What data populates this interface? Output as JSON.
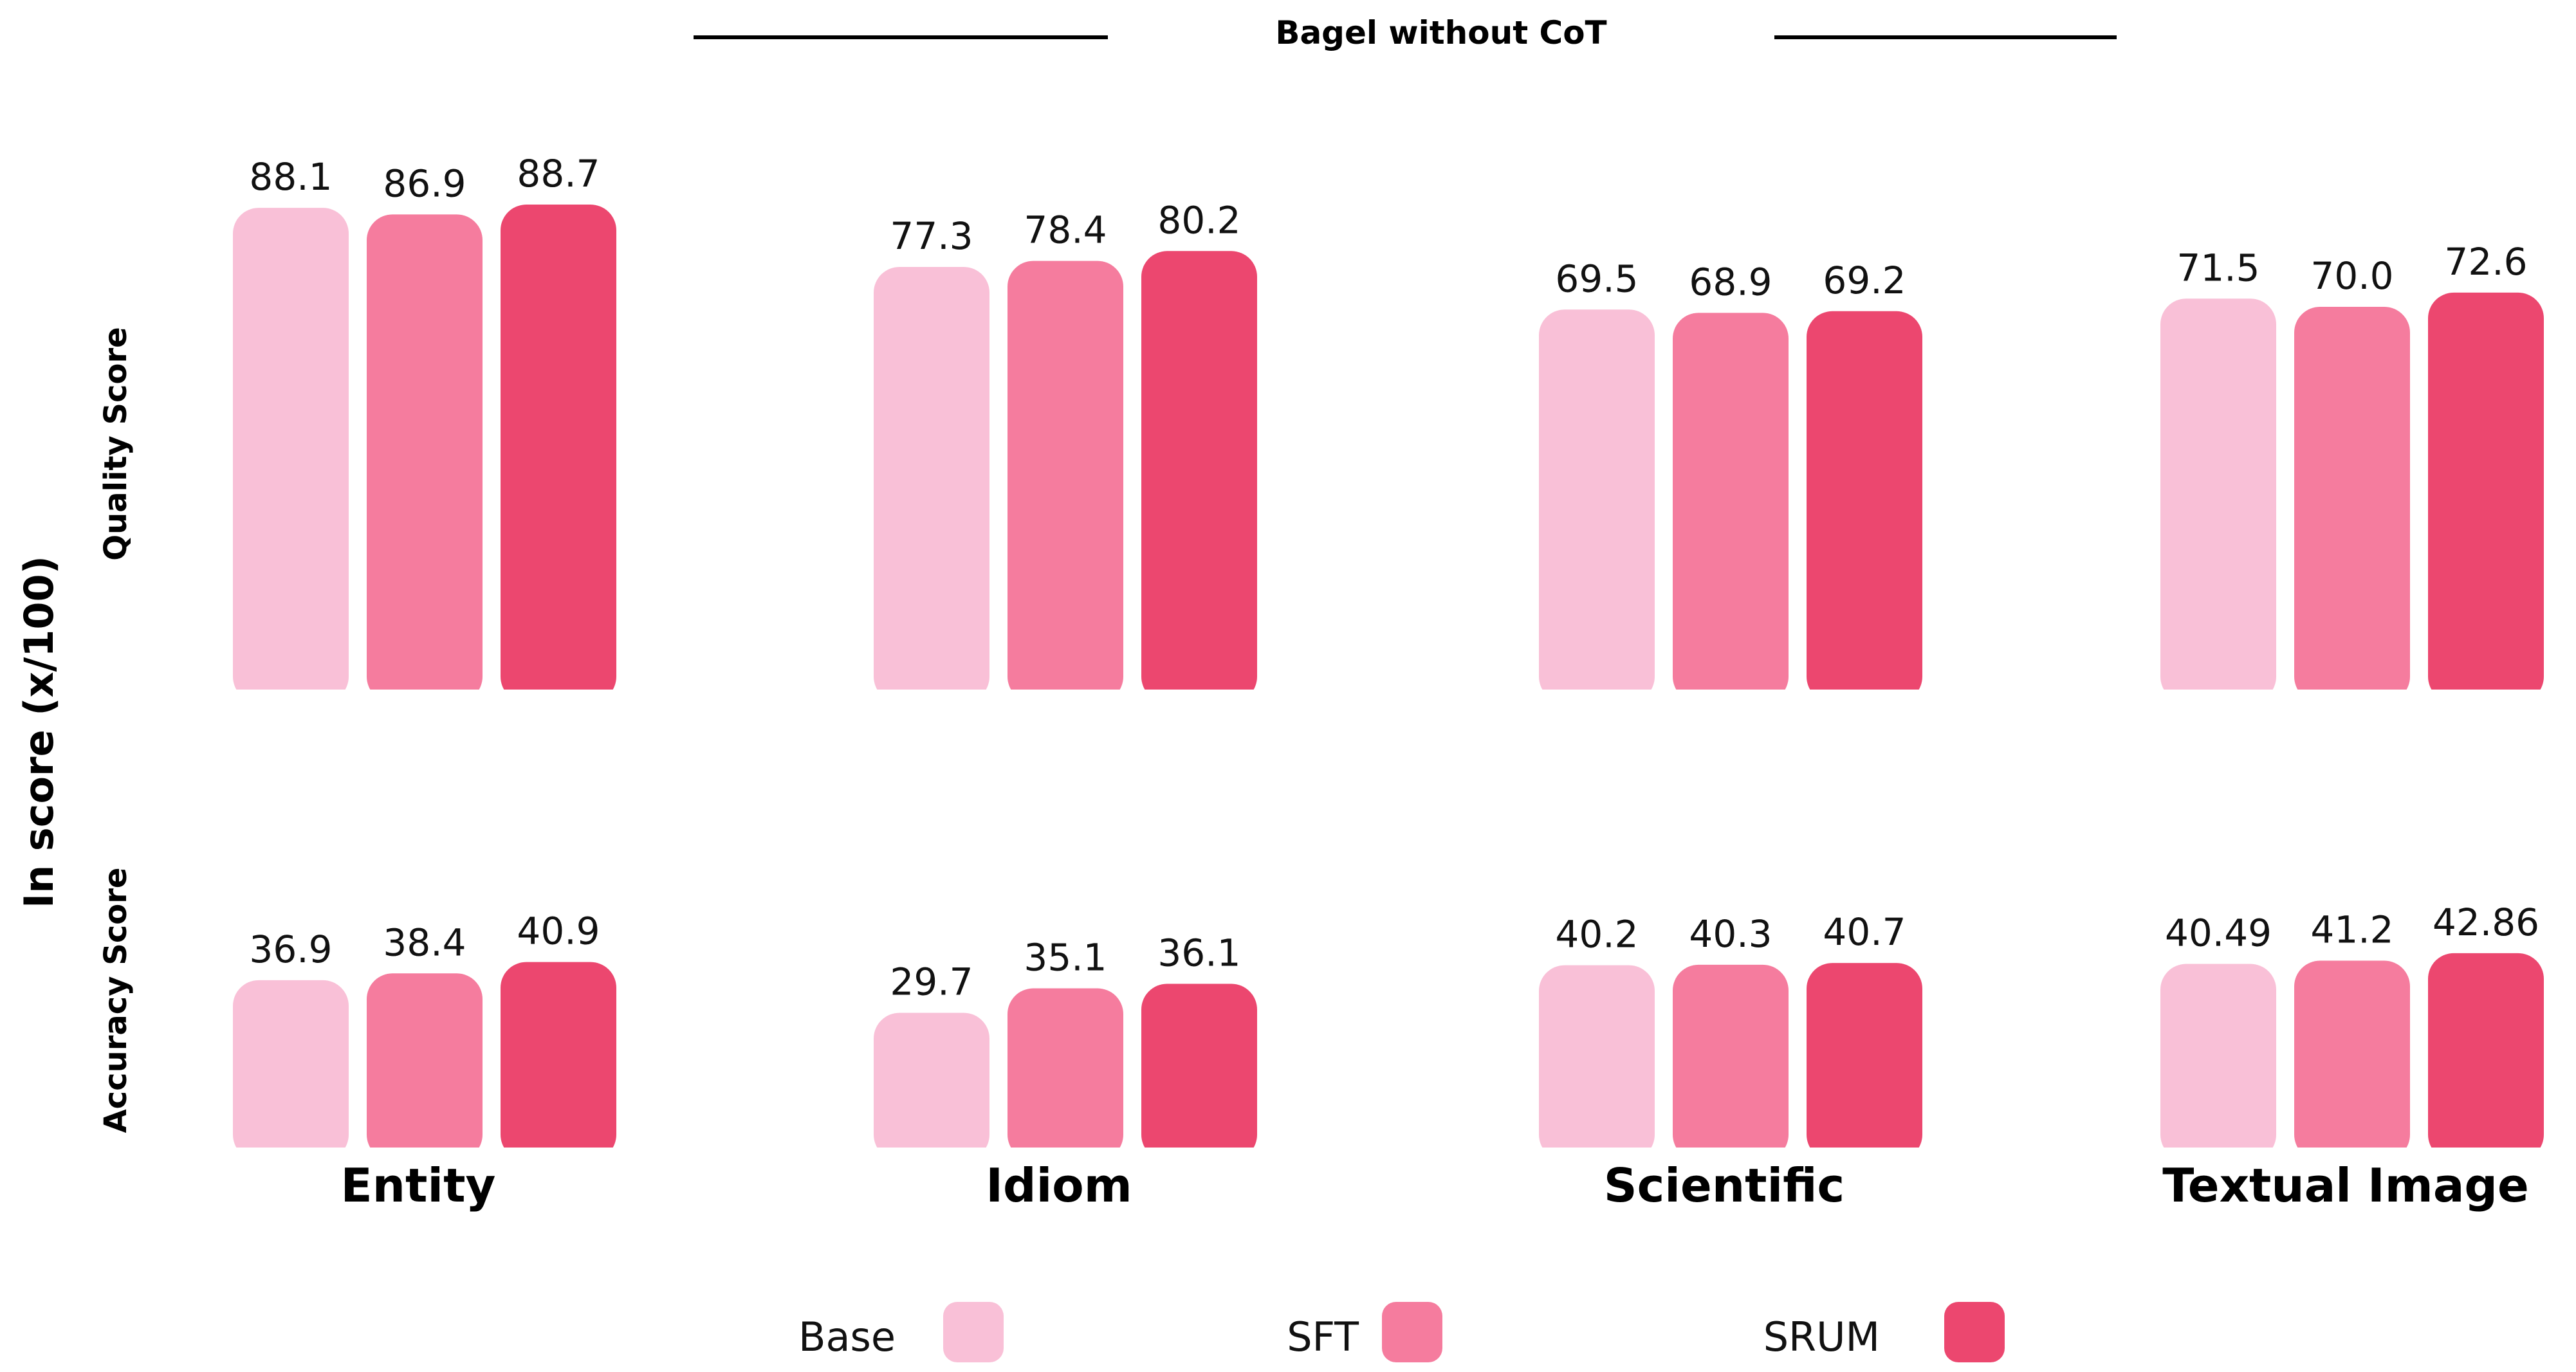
{
  "chart_data": {
    "type": "bar",
    "title": "Bagel without CoT",
    "ylabel": "In score (x/100)",
    "categories": [
      "Entity",
      "Idiom",
      "Scientific",
      "Textual Image"
    ],
    "panels": [
      {
        "name": "Quality Score",
        "ylim": [
          0,
          100
        ],
        "series": [
          {
            "name": "Base",
            "values": [
              88.1,
              77.3,
              69.5,
              71.5
            ],
            "labels": [
              "88.1",
              "77.3",
              "69.5",
              "71.5"
            ]
          },
          {
            "name": "SFT",
            "values": [
              86.9,
              78.4,
              68.9,
              70.0
            ],
            "labels": [
              "86.9",
              "78.4",
              "68.9",
              "70.0"
            ]
          },
          {
            "name": "SRUM",
            "values": [
              88.7,
              80.2,
              69.2,
              72.6
            ],
            "labels": [
              "88.7",
              "80.2",
              "69.2",
              "72.6"
            ]
          }
        ]
      },
      {
        "name": "Accuracy Score",
        "ylim": [
          0,
          100
        ],
        "series": [
          {
            "name": "Base",
            "values": [
              36.9,
              29.7,
              40.2,
              40.49
            ],
            "labels": [
              "36.9",
              "29.7",
              "40.2",
              "40.49"
            ]
          },
          {
            "name": "SFT",
            "values": [
              38.4,
              35.1,
              40.3,
              41.2
            ],
            "labels": [
              "38.4",
              "35.1",
              "40.3",
              "41.2"
            ]
          },
          {
            "name": "SRUM",
            "values": [
              40.9,
              36.1,
              40.7,
              42.86
            ],
            "labels": [
              "40.9",
              "36.1",
              "40.7",
              "42.86"
            ]
          }
        ]
      }
    ],
    "legend": {
      "position": "bottom",
      "entries": [
        {
          "name": "Base",
          "color": "#f9c0d7"
        },
        {
          "name": "SFT",
          "color": "#f57c9e"
        },
        {
          "name": "SRUM",
          "color": "#ec476f"
        }
      ]
    },
    "grid": false
  }
}
